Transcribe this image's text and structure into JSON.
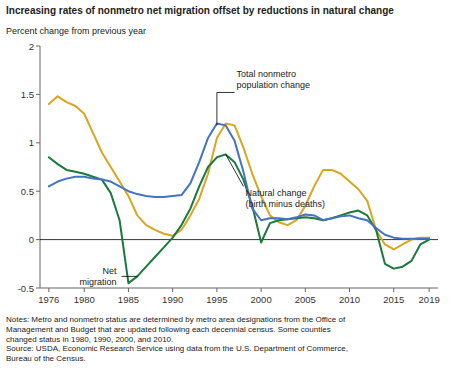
{
  "chart_data": {
    "type": "line",
    "title": "Increasing rates of nonmetro net migration offset by reductions in natural change",
    "y_label": "Percent change from previous year",
    "notes": "Notes: Metro and nonmetro status are determined by metro area designations from the Office of\nManagement and Budget that are updated following each decennial census. Some counties\nchanged status in 1980, 1990, 2000, and 2010.\nSource: USDA, Economic Research Service using data from the U.S. Department of Commerce,\nBureau of the Census.",
    "x": [
      1976,
      1977,
      1978,
      1979,
      1980,
      1981,
      1982,
      1983,
      1984,
      1985,
      1986,
      1987,
      1988,
      1989,
      1990,
      1991,
      1992,
      1993,
      1994,
      1995,
      1996,
      1997,
      1998,
      1999,
      2000,
      2001,
      2002,
      2003,
      2004,
      2005,
      2006,
      2007,
      2008,
      2009,
      2010,
      2011,
      2012,
      2013,
      2014,
      2015,
      2016,
      2017,
      2018,
      2019
    ],
    "series": [
      {
        "color": "#DAA520",
        "values": [
          1.4,
          1.48,
          1.42,
          1.38,
          1.3,
          1.1,
          0.9,
          0.75,
          0.6,
          0.45,
          0.25,
          0.15,
          0.1,
          0.06,
          0.04,
          0.1,
          0.25,
          0.42,
          0.68,
          1.05,
          1.2,
          1.18,
          0.95,
          0.68,
          0.45,
          0.25,
          0.18,
          0.15,
          0.2,
          0.35,
          0.55,
          0.72,
          0.72,
          0.68,
          0.6,
          0.52,
          0.4,
          0.1,
          -0.05,
          -0.1,
          -0.05,
          0.0,
          0.02,
          0.02
        ]
      },
      {
        "color": "#1a7a3c",
        "values": [
          0.85,
          0.78,
          0.72,
          0.7,
          0.68,
          0.65,
          0.62,
          0.48,
          0.2,
          -0.45,
          -0.38,
          -0.28,
          -0.18,
          -0.08,
          0.02,
          0.15,
          0.32,
          0.55,
          0.75,
          0.85,
          0.88,
          0.8,
          0.62,
          0.35,
          -0.03,
          0.17,
          0.2,
          0.21,
          0.22,
          0.23,
          0.22,
          0.2,
          0.22,
          0.25,
          0.28,
          0.3,
          0.25,
          0.1,
          -0.25,
          -0.3,
          -0.28,
          -0.22,
          -0.05,
          0.0
        ]
      },
      {
        "color": "#4472c4",
        "values": [
          0.55,
          0.6,
          0.63,
          0.65,
          0.65,
          0.63,
          0.62,
          0.6,
          0.55,
          0.5,
          0.47,
          0.45,
          0.44,
          0.44,
          0.45,
          0.46,
          0.58,
          0.8,
          1.05,
          1.2,
          1.18,
          1.02,
          0.7,
          0.32,
          0.2,
          0.22,
          0.22,
          0.21,
          0.23,
          0.26,
          0.25,
          0.2,
          0.22,
          0.24,
          0.25,
          0.22,
          0.2,
          0.12,
          0.05,
          0.02,
          0.01,
          0.01,
          0.01,
          0.01
        ]
      }
    ],
    "xlim": [
      1975,
      2020
    ],
    "xticks": [
      1976,
      1980,
      1985,
      1990,
      1995,
      2000,
      2005,
      2010,
      2015,
      2019
    ],
    "ylim": [
      -0.5,
      2.0
    ],
    "yticks": [
      -0.5,
      0,
      0.5,
      1,
      1.5,
      2
    ],
    "grid": false,
    "annotations": [
      {
        "text": "Total nonmetro\npopulation change",
        "x": 1995,
        "y": 1.18,
        "text_x": 1997,
        "text_y": 1.52
      },
      {
        "text": "Natural change\n(birth minus deaths)",
        "x": 1996,
        "y": 0.88,
        "text_x": 1998,
        "text_y": 0.55
      },
      {
        "text": "Net\nmigration",
        "x": 1986,
        "y": -0.38,
        "text_x": 1984,
        "text_y": -0.38
      }
    ]
  }
}
